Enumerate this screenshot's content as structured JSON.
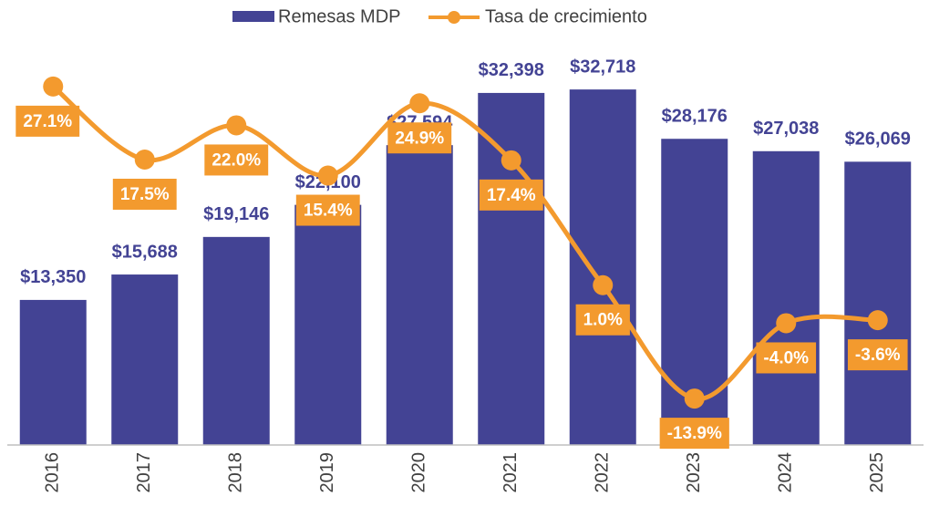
{
  "chart_data": {
    "type": "combo",
    "categories": [
      "2016",
      "2017",
      "2018",
      "2019",
      "2020",
      "2021",
      "2022",
      "2023",
      "2024",
      "2025"
    ],
    "series": [
      {
        "name": "Remesas MDP",
        "type": "bar",
        "color": "#434394",
        "values": [
          13350,
          15688,
          19146,
          22100,
          27594,
          32398,
          32718,
          28176,
          27038,
          26069
        ],
        "value_labels": [
          "$13,350",
          "$15,688",
          "$19,146",
          "$22,100",
          "$27,594",
          "$32,398",
          "$32,718",
          "$28,176",
          "$27,038",
          "$26,069"
        ]
      },
      {
        "name": "Tasa de crecimiento",
        "type": "line",
        "axis": "y2",
        "color": "#F39A2E",
        "values": [
          27.1,
          17.5,
          22.0,
          15.4,
          24.9,
          17.4,
          1.0,
          -13.9,
          -4.0,
          -3.6
        ],
        "value_labels": [
          "27.1%",
          "17.5%",
          "22.0%",
          "15.4%",
          "24.9%",
          "17.4%",
          "1.0%",
          "-13.9%",
          "-4.0%",
          "-3.6%"
        ]
      }
    ],
    "ylim": [
      0,
      36000
    ],
    "y2lim": [
      -20,
      31.4
    ],
    "grid": false,
    "legend": "top"
  }
}
